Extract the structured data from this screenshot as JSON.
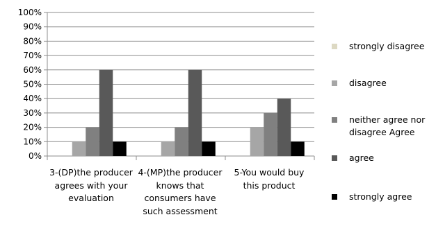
{
  "chart_data": {
    "type": "bar",
    "title": "",
    "xlabel": "",
    "ylabel": "",
    "ylim": [
      0,
      100
    ],
    "y_ticks": [
      "0%",
      "10%",
      "20%",
      "30%",
      "40%",
      "50%",
      "60%",
      "70%",
      "80%",
      "90%",
      "100%"
    ],
    "gridlines": true,
    "legend_position": "right",
    "categories": [
      "3-(DP)the producer agrees with your evaluation",
      "4-(MP)the producer knows that consumers have such assessment",
      "5-You would buy this product"
    ],
    "series": [
      {
        "name": "strongly disagree",
        "color": "#ddd9c3",
        "values": [
          0,
          0,
          0
        ]
      },
      {
        "name": "disagree",
        "color": "#a6a6a6",
        "values": [
          10,
          10,
          20
        ]
      },
      {
        "name": "neither agree nor disagree Agree",
        "color": "#808080",
        "values": [
          20,
          20,
          30
        ]
      },
      {
        "name": "agree",
        "color": "#595959",
        "values": [
          60,
          60,
          40
        ]
      },
      {
        "name": "strongly agree",
        "color": "#000000",
        "values": [
          10,
          10,
          10
        ]
      }
    ]
  }
}
